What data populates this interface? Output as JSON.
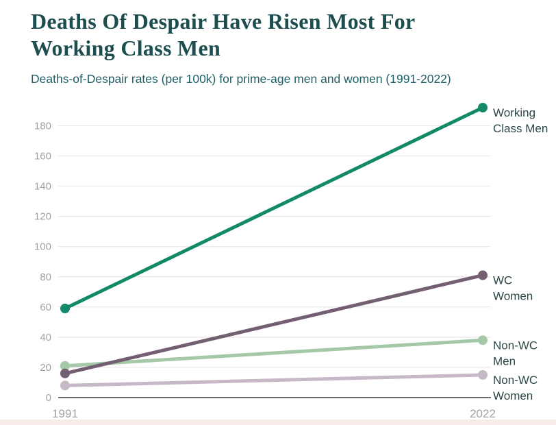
{
  "header": {
    "title_lines": [
      "Deaths Of Despair Have Risen Most For",
      "Working Class Men"
    ],
    "subtitle": "Deaths-of-Despair rates (per 100k) for prime-age men and women (1991-2022)"
  },
  "chart_data": {
    "type": "line",
    "title": "Deaths Of Despair Have Risen Most For Working Class Men",
    "subtitle": "Deaths-of-Despair rates (per 100k) for prime-age men and women (1991-2022)",
    "x": [
      1991,
      2022
    ],
    "x_tick_labels": [
      "1991",
      "2022"
    ],
    "yticks": [
      0,
      20,
      40,
      60,
      80,
      100,
      120,
      140,
      160,
      180
    ],
    "ylim": [
      0,
      195
    ],
    "grid": true,
    "legend_position": "labels-right-of-line-ends",
    "series": [
      {
        "name": "Working Class Men",
        "label_lines": [
          "Working",
          "Class Men"
        ],
        "values": [
          59,
          192
        ],
        "color": "#128a68"
      },
      {
        "name": "WC Women",
        "label_lines": [
          "WC",
          "Women"
        ],
        "values": [
          16,
          81
        ],
        "color": "#745f72"
      },
      {
        "name": "Non-WC Men",
        "label_lines": [
          "Non-WC",
          "Men"
        ],
        "values": [
          21,
          38
        ],
        "color": "#a5c9a8"
      },
      {
        "name": "Non-WC Women",
        "label_lines": [
          "Non-WC",
          "Women"
        ],
        "values": [
          8,
          15
        ],
        "color": "#c6b8c6"
      }
    ],
    "colors": {
      "title_text": "#1d4e4f",
      "subtitle_text": "#1f5f66",
      "series_label_text": "#2c4747",
      "tick_label_text": "#a1a1a1",
      "gridline": "#e9e7e7",
      "zero_axis": "#3c3c3c",
      "bottom_strip": "#f8ecea"
    }
  }
}
